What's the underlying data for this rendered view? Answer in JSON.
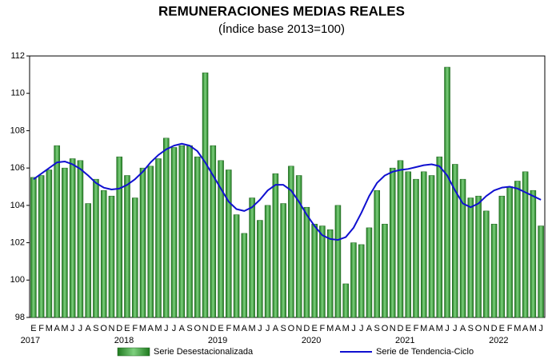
{
  "chart_data": {
    "type": "bar",
    "title": "REMUNERACIONES MEDIAS REALES",
    "subtitle": "(Índice base 2013=100)",
    "categories": [
      "E",
      "F",
      "M",
      "A",
      "M",
      "J",
      "J",
      "A",
      "S",
      "O",
      "N",
      "D",
      "E",
      "F",
      "M",
      "A",
      "M",
      "J",
      "J",
      "A",
      "S",
      "O",
      "N",
      "D",
      "E",
      "F",
      "M",
      "A",
      "M",
      "J",
      "J",
      "A",
      "S",
      "O",
      "N",
      "D",
      "E",
      "F",
      "M",
      "A",
      "M",
      "J",
      "J",
      "A",
      "S",
      "O",
      "N",
      "D",
      "E",
      "F",
      "M",
      "A",
      "M",
      "J",
      "J",
      "A",
      "S",
      "O",
      "N",
      "D",
      "E",
      "F",
      "M",
      "A",
      "M",
      "J"
    ],
    "year_labels": [
      "2017",
      "2018",
      "2019",
      "2020",
      "2021",
      "2022"
    ],
    "series": [
      {
        "name": "Serie Desestacionalizada",
        "type": "bar",
        "color": "#3fa63f",
        "values": [
          105.5,
          105.6,
          105.9,
          107.2,
          106.0,
          106.5,
          106.4,
          104.1,
          105.4,
          104.8,
          104.5,
          106.6,
          105.6,
          104.4,
          106.0,
          106.1,
          106.5,
          107.6,
          107.1,
          107.2,
          107.2,
          106.6,
          111.1,
          107.2,
          106.4,
          105.9,
          103.5,
          102.5,
          104.4,
          103.2,
          104.0,
          105.7,
          104.1,
          106.1,
          105.6,
          103.9,
          103.0,
          102.9,
          102.7,
          104.0,
          99.8,
          102.0,
          101.9,
          102.8,
          104.8,
          103.0,
          106.0,
          106.4,
          105.8,
          105.4,
          105.8,
          105.6,
          106.6,
          111.4,
          106.2,
          105.4,
          104.4,
          104.5,
          103.7,
          103.0,
          104.5,
          105.0,
          105.3,
          105.8,
          104.8,
          102.9
        ]
      },
      {
        "name": "Serie de Tendencia-Ciclo",
        "type": "line",
        "color": "#1010d0",
        "values": [
          105.4,
          105.7,
          106.0,
          106.3,
          106.35,
          106.2,
          105.95,
          105.6,
          105.2,
          104.95,
          104.85,
          104.9,
          105.1,
          105.4,
          105.8,
          106.3,
          106.7,
          107.0,
          107.2,
          107.3,
          107.2,
          106.9,
          106.3,
          105.6,
          104.9,
          104.2,
          103.8,
          103.7,
          103.9,
          104.3,
          104.8,
          105.1,
          105.1,
          104.8,
          104.2,
          103.5,
          102.9,
          102.4,
          102.2,
          102.15,
          102.3,
          102.8,
          103.6,
          104.5,
          105.2,
          105.6,
          105.8,
          105.9,
          105.95,
          106.05,
          106.15,
          106.2,
          106.1,
          105.6,
          104.8,
          104.1,
          103.9,
          104.1,
          104.5,
          104.8,
          104.95,
          105.0,
          104.9,
          104.7,
          104.5,
          104.3
        ]
      }
    ],
    "ylim": [
      98,
      112
    ],
    "yticks": [
      98,
      100,
      102,
      104,
      106,
      108,
      110,
      112
    ]
  }
}
